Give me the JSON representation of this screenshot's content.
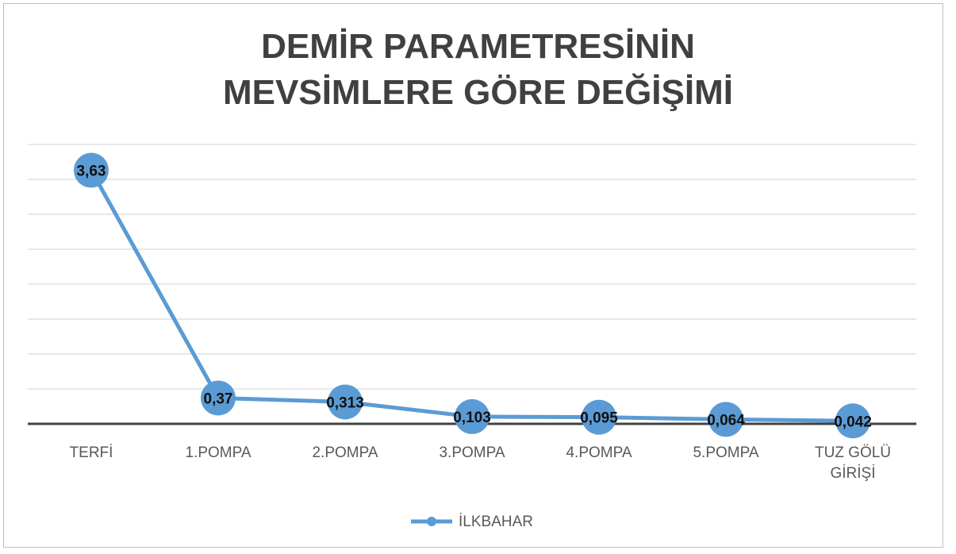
{
  "chart_data": {
    "type": "line",
    "title": "DEMİR PARAMETRESİNİN MEVSİMLERE GÖRE DEĞİŞİMİ",
    "categories": [
      "TERFİ",
      "1.POMPA",
      "2.POMPA",
      "3.POMPA",
      "4.POMPA",
      "5.POMPA",
      "TUZ GÖLÜ GİRİŞİ"
    ],
    "series": [
      {
        "name": "İLKBAHAR",
        "color": "#5b9bd5",
        "values": [
          3.63,
          0.37,
          0.313,
          0.103,
          0.095,
          0.064,
          0.042
        ],
        "value_labels": [
          "3,63",
          "0,37",
          "0,313",
          "0,103",
          "0,095",
          "0,064",
          "0,042"
        ]
      }
    ],
    "ylim": [
      0,
      4
    ],
    "yticks": [
      0,
      0.5,
      1,
      1.5,
      2,
      2.5,
      3,
      3.5,
      4
    ],
    "grid": true,
    "legend": "bottom"
  }
}
